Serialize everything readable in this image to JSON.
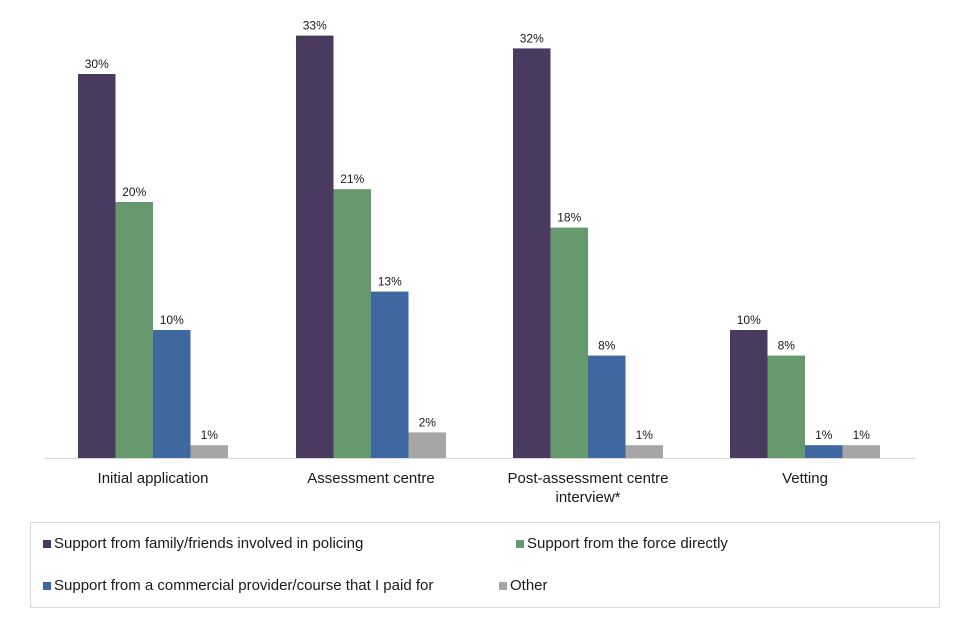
{
  "chart_data": {
    "type": "bar",
    "title": "",
    "xlabel": "",
    "ylabel": "",
    "ylim": [
      0,
      33
    ],
    "grid": false,
    "legend_position": "bottom",
    "categories": [
      [
        "Initial application"
      ],
      [
        "Assessment centre"
      ],
      [
        "Post-assessment centre",
        "interview*"
      ],
      [
        "Vetting"
      ]
    ],
    "series": [
      {
        "name": "Support from family/friends involved in policing",
        "color": "#4b3a5f",
        "values": [
          30,
          33,
          32,
          10
        ]
      },
      {
        "name": "Support from the force directly",
        "color": "#66996e",
        "values": [
          20,
          21,
          18,
          8
        ]
      },
      {
        "name": "Support from a commercial provider/course that I paid for",
        "color": "#3f68a0",
        "values": [
          10,
          13,
          8,
          1
        ]
      },
      {
        "name": "Other",
        "color": "#a6a6a6",
        "values": [
          1,
          2,
          1,
          1
        ]
      }
    ],
    "value_suffix": "%"
  }
}
